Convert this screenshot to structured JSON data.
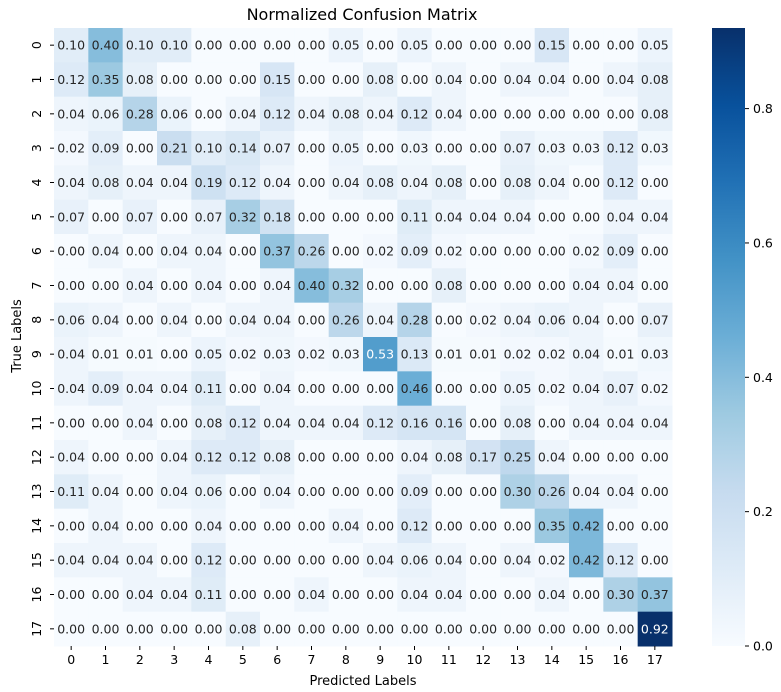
{
  "chart_data": {
    "type": "heatmap",
    "title": "Normalized Confusion Matrix",
    "xlabel": "Predicted Labels",
    "ylabel": "True Labels",
    "x_categories": [
      "0",
      "1",
      "2",
      "3",
      "4",
      "5",
      "6",
      "7",
      "8",
      "9",
      "10",
      "11",
      "12",
      "13",
      "14",
      "15",
      "16",
      "17"
    ],
    "y_categories": [
      "0",
      "1",
      "2",
      "3",
      "4",
      "5",
      "6",
      "7",
      "8",
      "9",
      "10",
      "11",
      "12",
      "13",
      "14",
      "15",
      "16",
      "17"
    ],
    "matrix": [
      [
        0.1,
        0.4,
        0.1,
        0.1,
        0.0,
        0.0,
        0.0,
        0.0,
        0.05,
        0.0,
        0.05,
        0.0,
        0.0,
        0.0,
        0.15,
        0.0,
        0.0,
        0.05
      ],
      [
        0.12,
        0.35,
        0.08,
        0.0,
        0.0,
        0.0,
        0.15,
        0.0,
        0.0,
        0.08,
        0.0,
        0.04,
        0.0,
        0.04,
        0.04,
        0.0,
        0.04,
        0.08
      ],
      [
        0.04,
        0.06,
        0.28,
        0.06,
        0.0,
        0.04,
        0.12,
        0.04,
        0.08,
        0.04,
        0.12,
        0.04,
        0.0,
        0.0,
        0.0,
        0.0,
        0.0,
        0.08
      ],
      [
        0.02,
        0.09,
        0.0,
        0.21,
        0.1,
        0.14,
        0.07,
        0.0,
        0.05,
        0.0,
        0.03,
        0.0,
        0.0,
        0.07,
        0.03,
        0.03,
        0.12,
        0.03
      ],
      [
        0.04,
        0.08,
        0.04,
        0.04,
        0.19,
        0.12,
        0.04,
        0.0,
        0.04,
        0.08,
        0.04,
        0.08,
        0.0,
        0.08,
        0.04,
        0.0,
        0.12,
        0.0
      ],
      [
        0.07,
        0.0,
        0.07,
        0.0,
        0.07,
        0.32,
        0.18,
        0.0,
        0.0,
        0.0,
        0.11,
        0.04,
        0.04,
        0.04,
        0.0,
        0.0,
        0.04,
        0.04
      ],
      [
        0.0,
        0.04,
        0.0,
        0.04,
        0.04,
        0.0,
        0.37,
        0.26,
        0.0,
        0.02,
        0.09,
        0.02,
        0.0,
        0.0,
        0.0,
        0.02,
        0.09,
        0.0
      ],
      [
        0.0,
        0.0,
        0.04,
        0.0,
        0.04,
        0.0,
        0.04,
        0.4,
        0.32,
        0.0,
        0.0,
        0.08,
        0.0,
        0.0,
        0.0,
        0.04,
        0.04,
        0.0
      ],
      [
        0.06,
        0.04,
        0.0,
        0.04,
        0.0,
        0.04,
        0.04,
        0.0,
        0.26,
        0.04,
        0.28,
        0.0,
        0.02,
        0.04,
        0.06,
        0.04,
        0.0,
        0.07
      ],
      [
        0.04,
        0.01,
        0.01,
        0.0,
        0.05,
        0.02,
        0.03,
        0.02,
        0.03,
        0.53,
        0.13,
        0.01,
        0.01,
        0.02,
        0.02,
        0.04,
        0.01,
        0.03
      ],
      [
        0.04,
        0.09,
        0.04,
        0.04,
        0.11,
        0.0,
        0.04,
        0.0,
        0.0,
        0.0,
        0.46,
        0.0,
        0.0,
        0.05,
        0.02,
        0.04,
        0.07,
        0.02
      ],
      [
        0.0,
        0.0,
        0.04,
        0.0,
        0.08,
        0.12,
        0.04,
        0.04,
        0.04,
        0.12,
        0.16,
        0.16,
        0.0,
        0.08,
        0.0,
        0.04,
        0.04,
        0.04
      ],
      [
        0.04,
        0.0,
        0.0,
        0.04,
        0.12,
        0.12,
        0.08,
        0.0,
        0.0,
        0.0,
        0.04,
        0.08,
        0.17,
        0.25,
        0.04,
        0.0,
        0.0,
        0.0
      ],
      [
        0.11,
        0.04,
        0.0,
        0.04,
        0.06,
        0.0,
        0.04,
        0.0,
        0.0,
        0.0,
        0.09,
        0.0,
        0.0,
        0.3,
        0.26,
        0.04,
        0.04,
        0.0
      ],
      [
        0.0,
        0.04,
        0.0,
        0.0,
        0.04,
        0.0,
        0.0,
        0.0,
        0.04,
        0.0,
        0.12,
        0.0,
        0.0,
        0.0,
        0.35,
        0.42,
        0.0,
        0.0
      ],
      [
        0.04,
        0.04,
        0.04,
        0.0,
        0.12,
        0.0,
        0.0,
        0.0,
        0.0,
        0.04,
        0.06,
        0.04,
        0.0,
        0.04,
        0.02,
        0.42,
        0.12,
        0.0
      ],
      [
        0.0,
        0.0,
        0.04,
        0.04,
        0.11,
        0.0,
        0.0,
        0.04,
        0.0,
        0.0,
        0.04,
        0.04,
        0.0,
        0.0,
        0.04,
        0.0,
        0.3,
        0.37
      ],
      [
        0.0,
        0.0,
        0.0,
        0.0,
        0.0,
        0.08,
        0.0,
        0.0,
        0.0,
        0.0,
        0.0,
        0.0,
        0.0,
        0.0,
        0.0,
        0.0,
        0.0,
        0.92
      ]
    ],
    "colormap": "Blues",
    "color_range": [
      0.0,
      0.92
    ],
    "colorbar": {
      "ticks": [
        0.0,
        0.2,
        0.4,
        0.6,
        0.8
      ],
      "tick_labels": [
        "0.0",
        "0.2",
        "0.4",
        "0.6",
        "0.8"
      ]
    },
    "value_format": "2 decimals",
    "grid": false,
    "colors": {
      "low": "#f7fbff",
      "high": "#08306b",
      "text_dark": "#262626",
      "text_light": "#ffffff"
    }
  }
}
